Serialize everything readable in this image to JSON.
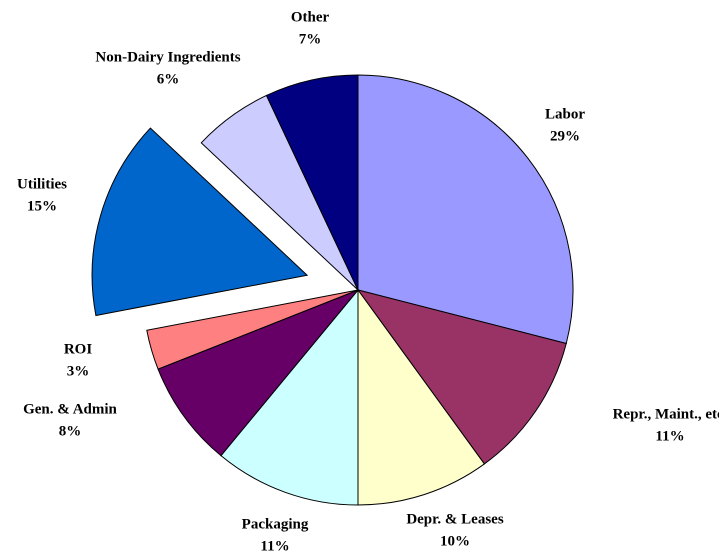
{
  "chart_data": {
    "type": "pie",
    "categories": [
      "Labor",
      "Repr., Maint., etc.",
      "Depr. & Leases",
      "Packaging",
      "Gen. & Admin",
      "ROI",
      "Utilities",
      "Non-Dairy Ingredients",
      "Other"
    ],
    "values": [
      29,
      11,
      10,
      11,
      8,
      3,
      15,
      6,
      7
    ],
    "value_labels": [
      "29%",
      "11%",
      "10%",
      "11%",
      "8%",
      "3%",
      "15%",
      "6%",
      "7%"
    ],
    "colors": [
      "#9999ff",
      "#993366",
      "#ffffcc",
      "#ccffff",
      "#660066",
      "#ff8080",
      "#0066cc",
      "#ccccff",
      "#000080"
    ],
    "exploded": [
      6
    ]
  }
}
